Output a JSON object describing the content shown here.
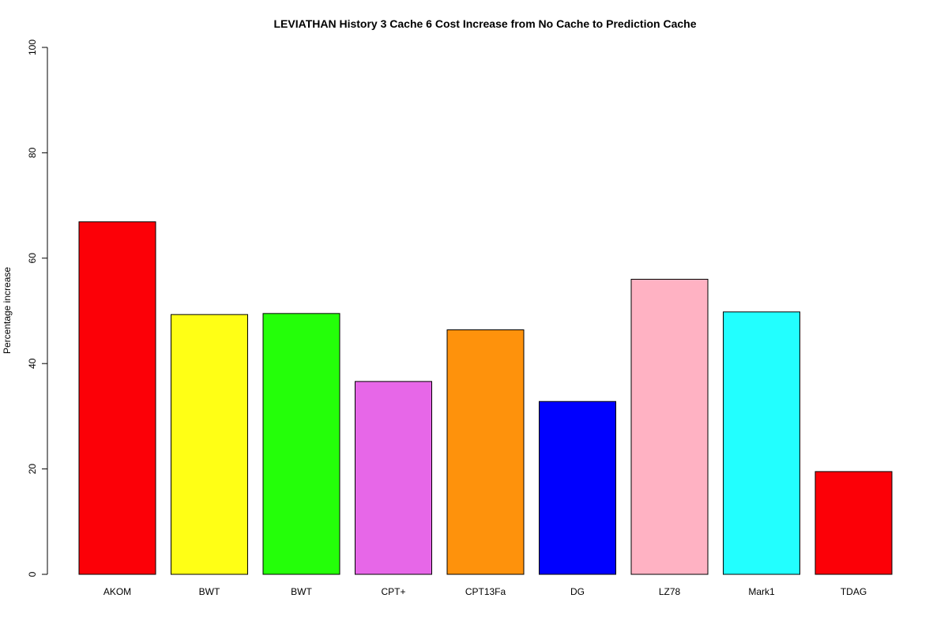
{
  "chart_data": {
    "type": "bar",
    "title": "LEVIATHAN  History  3  Cache  6  Cost Increase from No Cache to Prediction Cache",
    "xlabel": "",
    "ylabel": "Percentage increase",
    "categories": [
      "AKOM",
      "BWT",
      "BWT",
      "CPT+",
      "CPT13Fa",
      "DG",
      "LZ78",
      "Mark1",
      "TDAG"
    ],
    "values": [
      66.9,
      49.3,
      49.5,
      36.6,
      46.4,
      32.8,
      56.0,
      49.8,
      19.5
    ],
    "colors": [
      "#fc0007",
      "#ffff15",
      "#24ff09",
      "#e767e8",
      "#fe920c",
      "#0000ff",
      "#ffb2c3",
      "#22ffff",
      "#fc0007"
    ],
    "ylim": [
      0,
      100
    ],
    "yticks": [
      0,
      20,
      40,
      60,
      80,
      100
    ],
    "grid": false,
    "legend": "none"
  }
}
